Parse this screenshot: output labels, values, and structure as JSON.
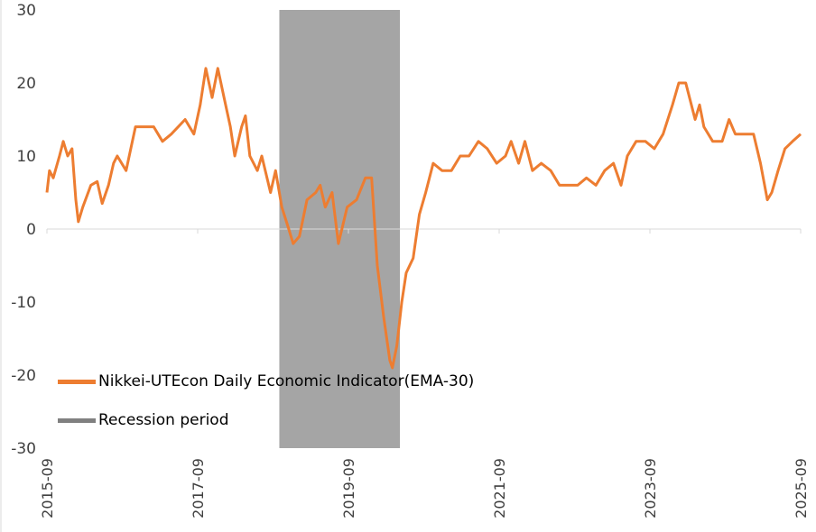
{
  "chart_data": {
    "type": "line",
    "title": "",
    "xlabel": "",
    "ylabel": "",
    "ylim": [
      -30,
      30
    ],
    "yticks": [
      "30",
      "20",
      "10",
      "0",
      "-10",
      "-20",
      "-30"
    ],
    "ytick_values": [
      30,
      20,
      10,
      0,
      -10,
      -20,
      -30
    ],
    "x_unit": "months since 2015-09",
    "xlim": [
      0,
      120
    ],
    "xticks": [
      "2015-09",
      "2017-09",
      "2019-09",
      "2021-09",
      "2023-09",
      "2025-09"
    ],
    "xtick_values": [
      0,
      24,
      48,
      72,
      96,
      120
    ],
    "grid": false,
    "legend_placement": "bottom-left",
    "series": [
      {
        "name": "Nikkei-UTEcon Daily Economic Indicator(EMA-30)",
        "color": "#ED7D31",
        "points": [
          [
            0,
            5
          ],
          [
            0.4,
            8
          ],
          [
            1,
            7
          ],
          [
            2,
            10
          ],
          [
            2.6,
            12
          ],
          [
            3.3,
            10
          ],
          [
            4,
            11
          ],
          [
            4.6,
            4
          ],
          [
            5,
            1
          ],
          [
            5.7,
            3
          ],
          [
            7,
            6
          ],
          [
            8,
            6.5
          ],
          [
            8.8,
            3.5
          ],
          [
            9.8,
            6
          ],
          [
            10.6,
            9
          ],
          [
            11.2,
            10
          ],
          [
            12.6,
            8
          ],
          [
            14.1,
            14
          ],
          [
            15.5,
            14
          ],
          [
            17,
            14
          ],
          [
            18.4,
            12
          ],
          [
            19.8,
            13
          ],
          [
            22,
            15
          ],
          [
            23.4,
            13
          ],
          [
            24.4,
            17
          ],
          [
            25.3,
            22
          ],
          [
            26.3,
            18
          ],
          [
            27.2,
            22
          ],
          [
            28.2,
            18
          ],
          [
            29.2,
            14
          ],
          [
            29.9,
            10
          ],
          [
            31,
            14
          ],
          [
            31.6,
            15.5
          ],
          [
            32.3,
            10
          ],
          [
            33.5,
            8
          ],
          [
            34.2,
            10
          ],
          [
            35.6,
            5
          ],
          [
            36.4,
            8
          ],
          [
            37.4,
            3
          ],
          [
            38.5,
            0
          ],
          [
            39.2,
            -2
          ],
          [
            40.2,
            -1
          ],
          [
            41.4,
            4
          ],
          [
            42.8,
            5
          ],
          [
            43.5,
            6
          ],
          [
            44.3,
            3
          ],
          [
            45.4,
            5
          ],
          [
            46.4,
            -2
          ],
          [
            47.8,
            3
          ],
          [
            49.3,
            4
          ],
          [
            50.7,
            7
          ],
          [
            51.7,
            7
          ],
          [
            52.6,
            -5
          ],
          [
            53.6,
            -12
          ],
          [
            54.6,
            -18
          ],
          [
            55,
            -19
          ],
          [
            55.7,
            -16
          ],
          [
            56.5,
            -10
          ],
          [
            57.2,
            -6
          ],
          [
            58.3,
            -4
          ],
          [
            59.3,
            2
          ],
          [
            60.3,
            5
          ],
          [
            61.5,
            9
          ],
          [
            62.9,
            8
          ],
          [
            64.4,
            8
          ],
          [
            65.8,
            10
          ],
          [
            67.2,
            10
          ],
          [
            68.7,
            12
          ],
          [
            70.1,
            11
          ],
          [
            71.6,
            9
          ],
          [
            73,
            10
          ],
          [
            73.9,
            12
          ],
          [
            75.1,
            9
          ],
          [
            76.1,
            12
          ],
          [
            77.3,
            8
          ],
          [
            78.7,
            9
          ],
          [
            80.2,
            8
          ],
          [
            81.6,
            6
          ],
          [
            83,
            6
          ],
          [
            84.5,
            6
          ],
          [
            85.9,
            7
          ],
          [
            87.4,
            6
          ],
          [
            88.8,
            8
          ],
          [
            90.2,
            9
          ],
          [
            91.4,
            6
          ],
          [
            92.4,
            10
          ],
          [
            93.8,
            12
          ],
          [
            95.3,
            12
          ],
          [
            96.7,
            11
          ],
          [
            98.1,
            13
          ],
          [
            99.6,
            17
          ],
          [
            100.6,
            20
          ],
          [
            101.7,
            20
          ],
          [
            103.2,
            15
          ],
          [
            103.9,
            17
          ],
          [
            104.6,
            14
          ],
          [
            106,
            12
          ],
          [
            107.5,
            12
          ],
          [
            108.6,
            15
          ],
          [
            109.6,
            13
          ],
          [
            111.1,
            13
          ],
          [
            112.5,
            13
          ],
          [
            113.6,
            9
          ],
          [
            114.7,
            4
          ],
          [
            115.4,
            5
          ],
          [
            116.4,
            8
          ],
          [
            117.5,
            11
          ],
          [
            118.7,
            12
          ],
          [
            120,
            13
          ]
        ]
      },
      {
        "name": "Recession period",
        "color": "#A5A5A5",
        "x_range": [
          37,
          56.2
        ]
      }
    ]
  }
}
